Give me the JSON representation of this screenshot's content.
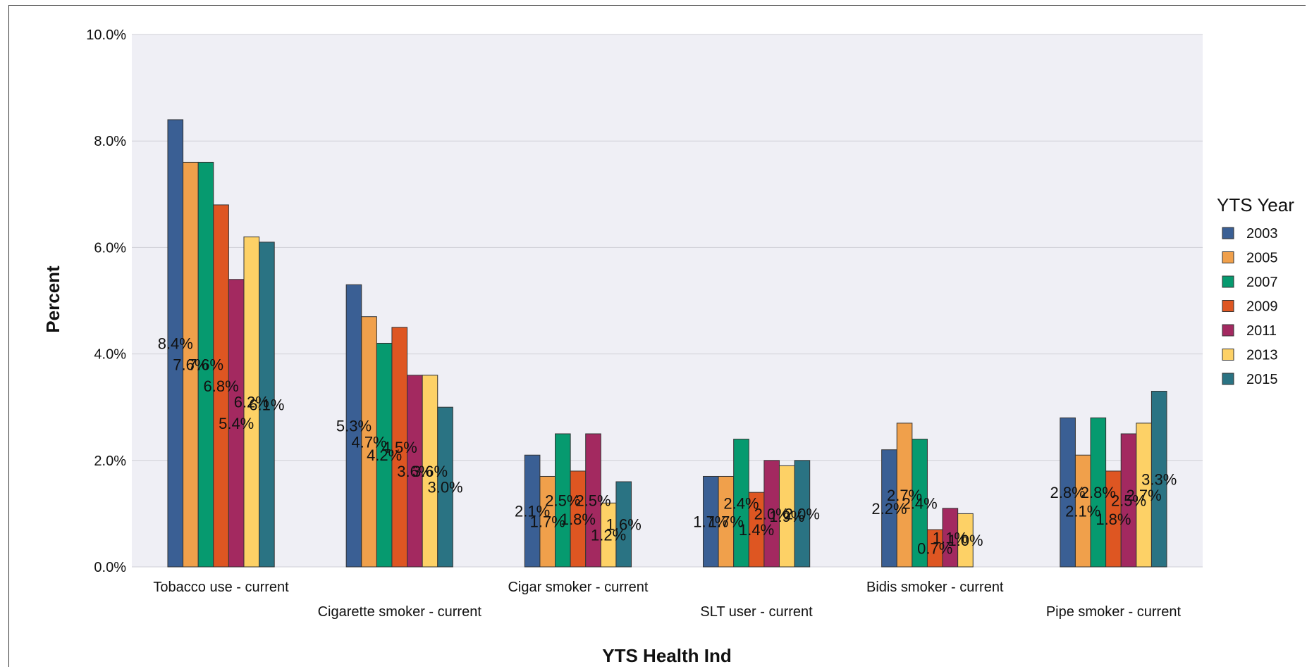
{
  "chart_data": {
    "type": "bar",
    "xlabel": "YTS Health Ind",
    "ylabel": "Percent",
    "ylim": [
      0,
      10
    ],
    "y_ticks": [
      "0.0%",
      "2.0%",
      "4.0%",
      "6.0%",
      "8.0%",
      "10.0%"
    ],
    "categories": [
      "Tobacco use - current",
      "Cigarette smoker - current",
      "Cigar smoker - current",
      "SLT user - current",
      "Bidis smoker - current",
      "Pipe smoker - current"
    ],
    "legend": {
      "title": "YTS Year",
      "placement": "right"
    },
    "series": [
      {
        "name": "2003",
        "color": "#3a5f94",
        "values": [
          8.4,
          5.3,
          2.1,
          1.7,
          2.2,
          2.8
        ],
        "labels": [
          "8.4%",
          "5.3%",
          "2.1%",
          "1.7%",
          "2.2%",
          "2.8%"
        ]
      },
      {
        "name": "2005",
        "color": "#f0a04b",
        "values": [
          7.6,
          4.7,
          1.7,
          1.7,
          2.7,
          2.1
        ],
        "labels": [
          "7.6%",
          "4.7%",
          "1.7%",
          "1.7%",
          "2.7%",
          "2.1%"
        ]
      },
      {
        "name": "2007",
        "color": "#069a6f",
        "values": [
          7.6,
          4.2,
          2.5,
          2.4,
          2.4,
          2.8
        ],
        "labels": [
          "7.6%",
          "4.2%",
          "2.5%",
          "2.4%",
          "2.4%",
          "2.8%"
        ]
      },
      {
        "name": "2009",
        "color": "#de5622",
        "values": [
          6.8,
          4.5,
          1.8,
          1.4,
          0.7,
          1.8
        ],
        "labels": [
          "6.8%",
          "4.5%",
          "1.8%",
          "1.4%",
          "0.7%",
          "1.8%"
        ]
      },
      {
        "name": "2011",
        "color": "#a32960",
        "values": [
          5.4,
          3.6,
          2.5,
          2.0,
          1.1,
          2.5
        ],
        "labels": [
          "5.4%",
          "3.6%",
          "2.5%",
          "2.0%",
          "1.1%",
          "2.5%"
        ]
      },
      {
        "name": "2013",
        "color": "#fdd166",
        "values": [
          6.2,
          3.6,
          1.2,
          1.9,
          1.0,
          2.7
        ],
        "labels": [
          "6.2%",
          "3.6%",
          "1.2%",
          "1.9%",
          "1.0%",
          "2.7%"
        ]
      },
      {
        "name": "2015",
        "color": "#2a7383",
        "values": [
          6.1,
          3.0,
          1.6,
          2.0,
          null,
          3.3
        ],
        "labels": [
          "6.1%",
          "3.0%",
          "1.6%",
          "2.0%",
          "",
          "3.3%"
        ]
      }
    ],
    "grid": true,
    "plot_background": "#efeff5"
  }
}
